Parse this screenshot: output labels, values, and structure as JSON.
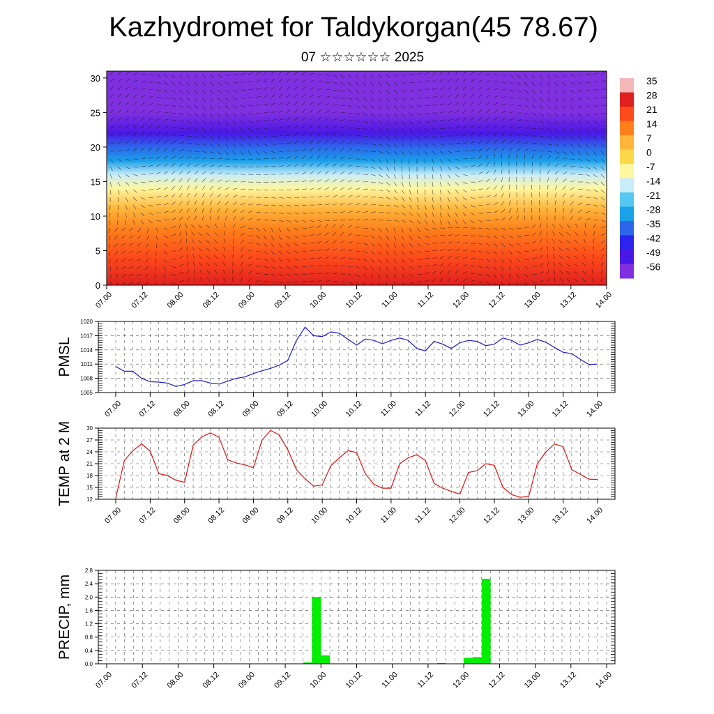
{
  "title": "Kazhydromet for Taldykorgan(45 78.67)",
  "subtitle": "07 ☆☆☆☆☆☆ 2025",
  "chart_data": [
    {
      "type": "heatmap",
      "title": "",
      "xlabel": "",
      "ylabel": "",
      "x_tick_labels": [
        "07.00",
        "07.12",
        "08.00",
        "08.12",
        "09.00",
        "09.12",
        "10.00",
        "10.12",
        "11.00",
        "11.12",
        "12.00",
        "12.12",
        "13.00",
        "13.12",
        "14.00"
      ],
      "y_ticks": [
        0,
        5,
        10,
        15,
        20,
        25,
        30
      ],
      "ylim": [
        0,
        31
      ],
      "color_scale": {
        "labels": [
          "35",
          "28",
          "21",
          "14",
          "7",
          "0",
          "-7",
          "-14",
          "-21",
          "-28",
          "-35",
          "-42",
          "-49",
          "-56"
        ],
        "colors": [
          "#f4b8b8",
          "#e02020",
          "#ff4a1a",
          "#ff7f1a",
          "#ffb43a",
          "#ffd84a",
          "#fff6a0",
          "#c8ecf8",
          "#55c8f2",
          "#1ba0ea",
          "#2d66ea",
          "#2a24ee",
          "#4a18e6",
          "#8030e0"
        ]
      },
      "wind_vectors": true,
      "layer_temperatures": [
        {
          "height": 0,
          "temp": 28
        },
        {
          "height": 4,
          "temp": 22
        },
        {
          "height": 8,
          "temp": 14
        },
        {
          "height": 11,
          "temp": 6
        },
        {
          "height": 14,
          "temp": -5
        },
        {
          "height": 16,
          "temp": -14
        },
        {
          "height": 18,
          "temp": -26
        },
        {
          "height": 20,
          "temp": -36
        },
        {
          "height": 22,
          "temp": -46
        },
        {
          "height": 25,
          "temp": -54
        },
        {
          "height": 28,
          "temp": -58
        },
        {
          "height": 31,
          "temp": -60
        }
      ]
    },
    {
      "type": "line",
      "ylabel": "PMSL",
      "ylim": [
        1005,
        1020
      ],
      "y_ticks": [
        1005,
        1008,
        1011,
        1014,
        1017,
        1020
      ],
      "x_tick_labels": [
        "07.00",
        "07.12",
        "08.00",
        "08.12",
        "09.00",
        "09.12",
        "10.00",
        "10.12",
        "11.00",
        "11.12",
        "12.00",
        "12.12",
        "13.00",
        "13.12",
        "14.00"
      ],
      "color": "#1a1acc",
      "x": [
        0,
        1,
        2,
        3,
        4,
        5,
        6,
        7,
        8,
        9,
        10,
        11,
        12,
        13,
        14,
        15,
        16,
        17,
        18,
        19,
        20,
        21,
        22,
        23,
        24,
        25,
        26,
        27,
        28,
        29,
        30,
        31,
        32,
        33,
        34,
        35,
        36,
        37,
        38,
        39,
        40,
        41,
        42,
        43,
        44,
        45,
        46,
        47,
        48,
        49,
        50,
        51,
        52,
        53,
        54,
        55,
        56
      ],
      "values": [
        1010.5,
        1009.5,
        1009.5,
        1008,
        1007.3,
        1007.2,
        1007,
        1006.3,
        1006.7,
        1007.5,
        1007.5,
        1007,
        1006.8,
        1007.4,
        1008,
        1008.3,
        1009,
        1009.6,
        1010.1,
        1010.8,
        1011.8,
        1016,
        1018.8,
        1017,
        1016.8,
        1017.8,
        1017.5,
        1016.2,
        1015,
        1016.3,
        1016,
        1015.3,
        1016,
        1016.5,
        1016,
        1014.3,
        1013.8,
        1015.8,
        1015.2,
        1014.3,
        1015.5,
        1016,
        1015.8,
        1014.9,
        1015.2,
        1016.5,
        1016,
        1015,
        1015.5,
        1016.2,
        1015.6,
        1014.5,
        1013.5,
        1013.2,
        1012,
        1010.9,
        1011
      ]
    },
    {
      "type": "line",
      "ylabel": "TEMP at 2 M",
      "ylim": [
        12,
        30
      ],
      "y_ticks": [
        12,
        15,
        18,
        21,
        24,
        27,
        30
      ],
      "x_tick_labels": [
        "07.00",
        "07.12",
        "08.00",
        "08.12",
        "09.00",
        "09.12",
        "10.00",
        "10.12",
        "11.00",
        "11.12",
        "12.00",
        "12.12",
        "13.00",
        "13.12",
        "14.00"
      ],
      "color": "#dd1111",
      "x": [
        0,
        1,
        2,
        3,
        4,
        5,
        6,
        7,
        8,
        9,
        10,
        11,
        12,
        13,
        14,
        15,
        16,
        17,
        18,
        19,
        20,
        21,
        22,
        23,
        24,
        25,
        26,
        27,
        28,
        29,
        30,
        31,
        32,
        33,
        34,
        35,
        36,
        37,
        38,
        39,
        40,
        41,
        42,
        43,
        44,
        45,
        46,
        47,
        48,
        49,
        50,
        51,
        52,
        53,
        54,
        55,
        56
      ],
      "values": [
        12.3,
        21.8,
        24.3,
        26,
        24.2,
        18.5,
        18,
        16.8,
        16.3,
        25.7,
        27.8,
        28.8,
        27.7,
        22,
        21.2,
        20.7,
        20,
        27,
        29.4,
        28.3,
        24.5,
        19.5,
        17.2,
        15.3,
        15.6,
        20.5,
        22.5,
        24.3,
        23.8,
        18.5,
        15.8,
        14.8,
        14.8,
        21,
        22.5,
        23.3,
        21.8,
        16,
        14.8,
        14,
        13.3,
        18.8,
        19.2,
        21,
        20.6,
        15,
        13.2,
        12.5,
        12.7,
        21,
        24,
        26,
        25.3,
        19.5,
        18.3,
        17.1,
        17
      ]
    },
    {
      "type": "bar",
      "ylabel": "PRECIP, mm",
      "ylim": [
        0,
        2.8
      ],
      "y_ticks": [
        "0.0",
        "0.4",
        "0.8",
        "1.2",
        "1.6",
        "2.0",
        "2.4",
        "2.8"
      ],
      "x_tick_labels": [
        "07.00",
        "07.12",
        "08.00",
        "08.12",
        "09.00",
        "09.12",
        "10.00",
        "10.12",
        "11.00",
        "11.12",
        "12.00",
        "12.12",
        "13.00",
        "13.12",
        "14.00"
      ],
      "color": "#00ee00",
      "bars": [
        {
          "x": 22.5,
          "value": 0.04
        },
        {
          "x": 23.5,
          "value": 2.0
        },
        {
          "x": 24.5,
          "value": 0.25
        },
        {
          "x": 37.5,
          "value": 0.02
        },
        {
          "x": 40.5,
          "value": 0.18
        },
        {
          "x": 41.5,
          "value": 0.2
        },
        {
          "x": 42.5,
          "value": 2.55
        }
      ]
    }
  ]
}
